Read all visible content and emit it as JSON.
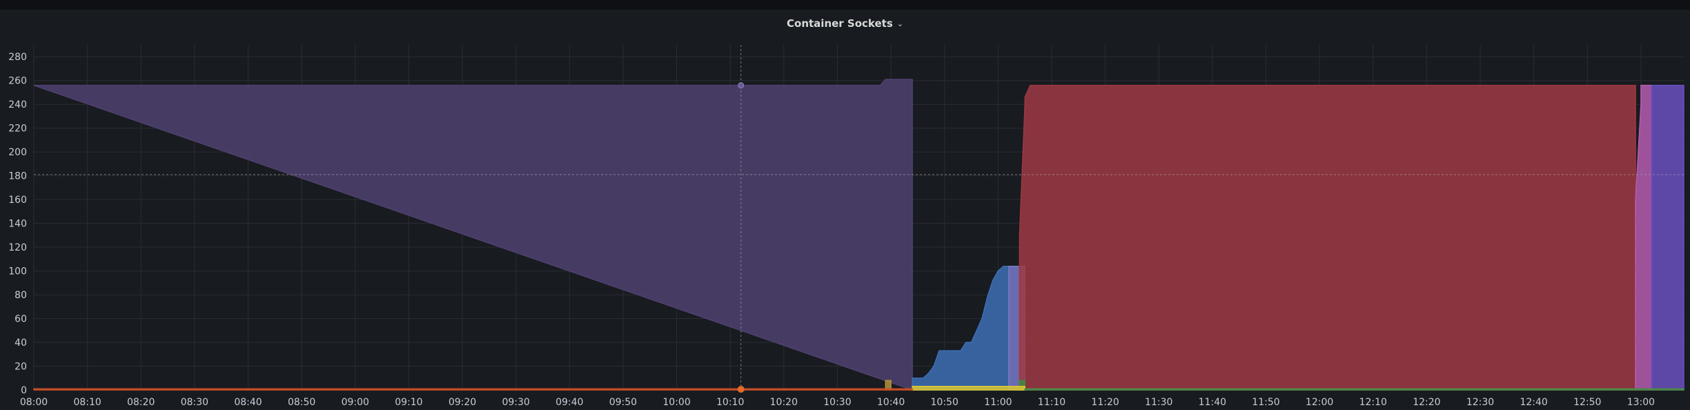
{
  "panel": {
    "title": "Container Sockets",
    "menu_icon": "chevron-down-icon"
  },
  "hover": {
    "x": "10:12",
    "y": 181
  },
  "chart_data": {
    "type": "area",
    "stacked": true,
    "title": "Container Sockets",
    "xlabel": "",
    "ylabel": "",
    "ylim": [
      0,
      290
    ],
    "xlim": [
      "08:00",
      "13:08"
    ],
    "yticks": [
      0,
      20,
      40,
      60,
      80,
      100,
      120,
      140,
      160,
      180,
      200,
      220,
      240,
      260,
      280
    ],
    "xticks": [
      "08:00",
      "08:10",
      "08:20",
      "08:30",
      "08:40",
      "08:50",
      "09:00",
      "09:10",
      "09:20",
      "09:30",
      "09:40",
      "09:50",
      "10:00",
      "10:10",
      "10:20",
      "10:30",
      "10:40",
      "10:50",
      "11:00",
      "11:10",
      "11:20",
      "11:30",
      "11:40",
      "11:50",
      "12:00",
      "12:10",
      "12:20",
      "12:30",
      "12:40",
      "12:50",
      "13:00"
    ],
    "grid": true,
    "legend": "none",
    "series": [
      {
        "color": "#4f4170",
        "points": [
          [
            "08:00",
            256
          ],
          [
            "10:38",
            256
          ],
          [
            "10:39",
            261
          ],
          [
            "10:44",
            261
          ],
          [
            "10:44",
            0
          ]
        ]
      },
      {
        "color": "#3d6fb5",
        "points": [
          [
            "10:44",
            0
          ],
          [
            "10:44",
            10
          ],
          [
            "10:46",
            10
          ],
          [
            "10:47",
            14
          ],
          [
            "10:48",
            20
          ],
          [
            "10:49",
            33
          ],
          [
            "10:53",
            33
          ],
          [
            "10:54",
            40
          ],
          [
            "10:55",
            40
          ],
          [
            "10:56",
            50
          ],
          [
            "10:57",
            60
          ],
          [
            "10:58",
            78
          ],
          [
            "10:59",
            92
          ],
          [
            "11:00",
            100
          ],
          [
            "11:01",
            104
          ],
          [
            "11:02",
            104
          ],
          [
            "11:02",
            0
          ]
        ]
      },
      {
        "color": "#7979c9",
        "points": [
          [
            "11:02",
            0
          ],
          [
            "11:02",
            104
          ],
          [
            "11:05",
            104
          ],
          [
            "11:05",
            0
          ]
        ]
      },
      {
        "color": "#9d3844",
        "points": [
          [
            "11:04",
            0
          ],
          [
            "11:04",
            100
          ],
          [
            "11:04",
            130
          ],
          [
            "11:05",
            240
          ],
          [
            "11:05",
            246
          ],
          [
            "11:06",
            256
          ],
          [
            "12:59",
            256
          ],
          [
            "12:59",
            0
          ]
        ]
      },
      {
        "color": "#b55cb0",
        "points": [
          [
            "12:59",
            0
          ],
          [
            "12:59",
            15
          ],
          [
            "12:59",
            160
          ],
          [
            "13:00",
            240
          ],
          [
            "13:00",
            256
          ],
          [
            "13:02",
            256
          ],
          [
            "13:02",
            0
          ]
        ]
      },
      {
        "color": "#6a4fc0",
        "points": [
          [
            "13:02",
            0
          ],
          [
            "13:02",
            256
          ],
          [
            "13:08",
            256
          ],
          [
            "13:08",
            0
          ]
        ]
      },
      {
        "color": "#b2913a",
        "points": [
          [
            "10:39",
            0
          ],
          [
            "10:39",
            8
          ],
          [
            "10:40",
            8
          ],
          [
            "10:40",
            0
          ]
        ]
      },
      {
        "color": "#3f8a3f",
        "points": [
          [
            "11:04",
            0
          ],
          [
            "11:04",
            8
          ],
          [
            "11:05",
            8
          ],
          [
            "11:05",
            0
          ]
        ]
      },
      {
        "color": "#d9c731",
        "points": [
          [
            "10:44",
            0
          ],
          [
            "10:44",
            3
          ],
          [
            "11:05",
            3
          ],
          [
            "11:05",
            0
          ]
        ]
      },
      {
        "color": "#c94f27",
        "points": [
          [
            "08:00",
            0
          ],
          [
            "08:00",
            1
          ],
          [
            "10:44",
            1
          ],
          [
            "10:44",
            0
          ]
        ]
      },
      {
        "color": "#4b8a46",
        "points": [
          [
            "11:05",
            0
          ],
          [
            "11:05",
            1
          ],
          [
            "13:08",
            1
          ],
          [
            "13:08",
            0
          ]
        ]
      }
    ]
  }
}
